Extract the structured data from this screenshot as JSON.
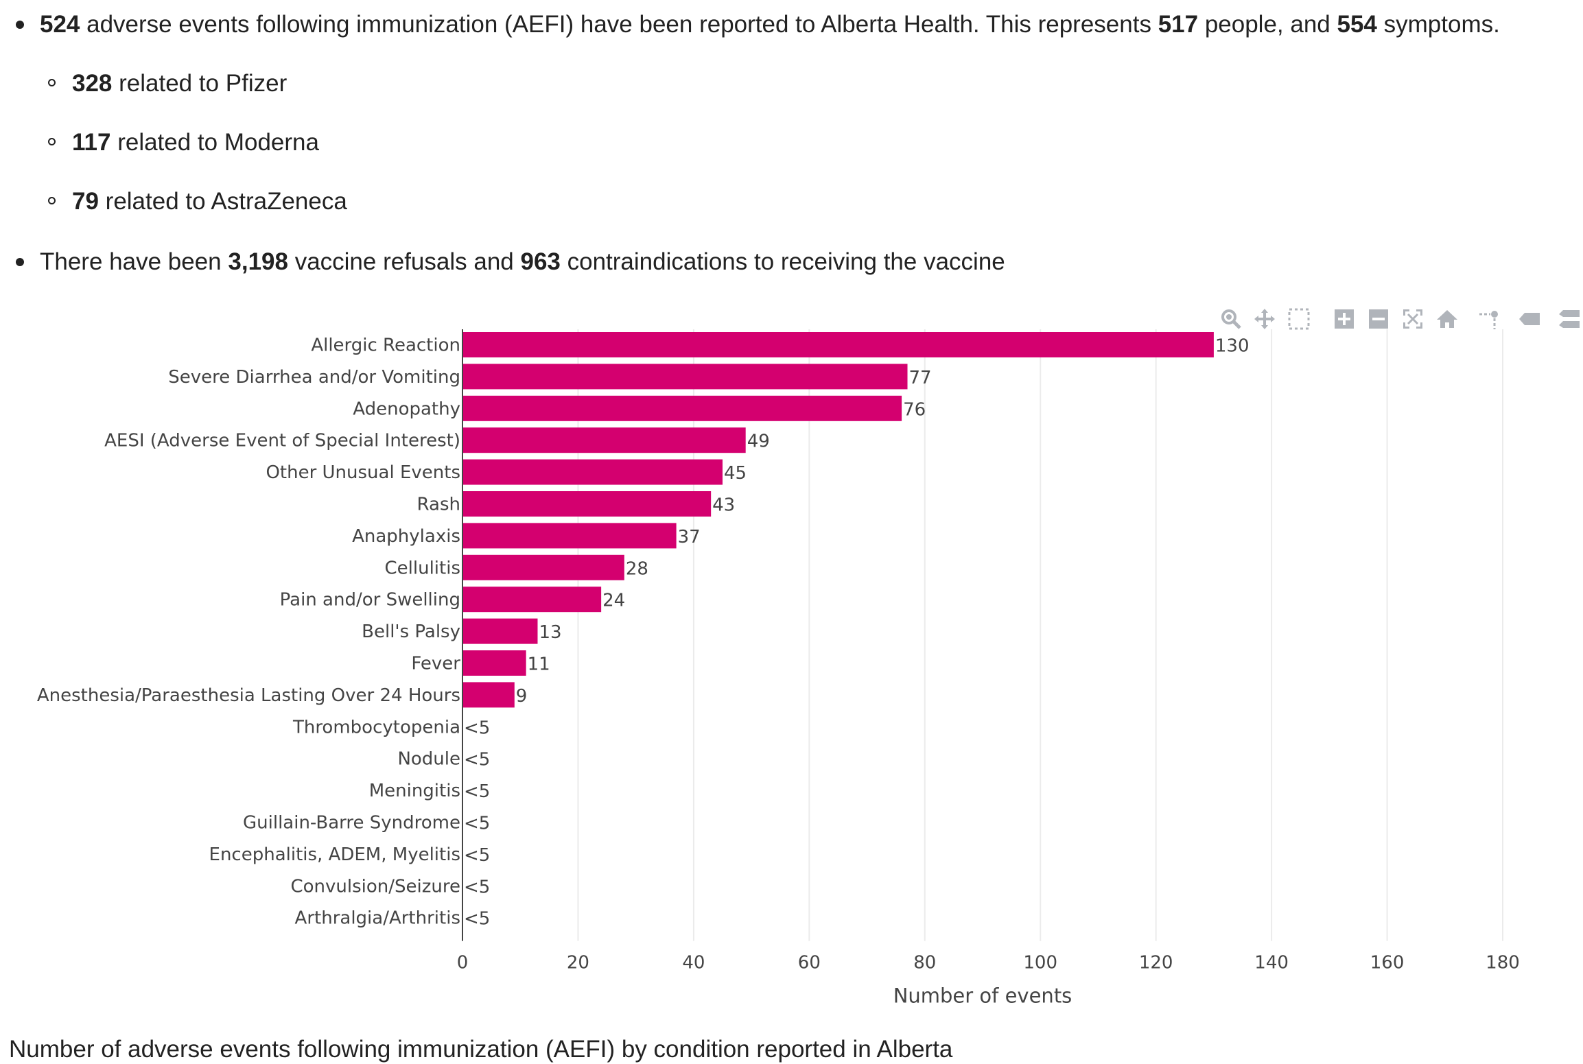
{
  "summary": {
    "line1": {
      "n_events": "524",
      "text_a": " adverse events following immunization (AEFI) have been reported to Alberta Health. This represents ",
      "n_people": "517",
      "text_b": " people, and ",
      "n_symptoms": "554",
      "text_c": " symptoms."
    },
    "sub": [
      {
        "count": "328",
        "text": " related to Pfizer"
      },
      {
        "count": "117",
        "text": " related to Moderna"
      },
      {
        "count": "79",
        "text": " related to AstraZeneca"
      }
    ],
    "line2": {
      "text_a": "There have been ",
      "refusals": "3,198",
      "text_b": " vaccine refusals and ",
      "contra": "963",
      "text_c": " contraindications to receiving the vaccine"
    }
  },
  "modebar_icons": [
    "zoom-icon",
    "pan-icon",
    "box-select-icon",
    "zoom-in-icon",
    "zoom-out-icon",
    "autoscale-icon",
    "reset-axes-icon",
    "spike-lines-icon",
    "hover-closest-icon",
    "hover-compare-icon"
  ],
  "chart_data": {
    "type": "bar",
    "orientation": "horizontal",
    "bar_color": "#d4006f",
    "categories": [
      "Allergic Reaction",
      "Severe Diarrhea and/or Vomiting",
      "Adenopathy",
      "AESI (Adverse Event of Special Interest)",
      "Other Unusual Events",
      "Rash",
      "Anaphylaxis",
      "Cellulitis",
      "Pain and/or Swelling",
      "Bell's Palsy",
      "Fever",
      "Anesthesia/Paraesthesia Lasting Over 24 Hours",
      "Thrombocytopenia",
      "Nodule",
      "Meningitis",
      "Guillain-Barre Syndrome",
      "Encephalitis, ADEM, Myelitis",
      "Convulsion/Seizure",
      "Arthralgia/Arthritis"
    ],
    "values": [
      130,
      77,
      76,
      49,
      45,
      43,
      37,
      28,
      24,
      13,
      11,
      9,
      0,
      0,
      0,
      0,
      0,
      0,
      0
    ],
    "data_labels": [
      "130",
      "77",
      "76",
      "49",
      "45",
      "43",
      "37",
      "28",
      "24",
      "13",
      "11",
      "9",
      "<5",
      "<5",
      "<5",
      "<5",
      "<5",
      "<5",
      "<5"
    ],
    "xlabel": "Number of events",
    "xlim": [
      0,
      180
    ],
    "xticks": [
      0,
      20,
      40,
      60,
      80,
      100,
      120,
      140,
      160,
      180
    ],
    "grid": true
  },
  "caption": "Number of adverse events following immunization (AEFI) by condition reported in Alberta"
}
